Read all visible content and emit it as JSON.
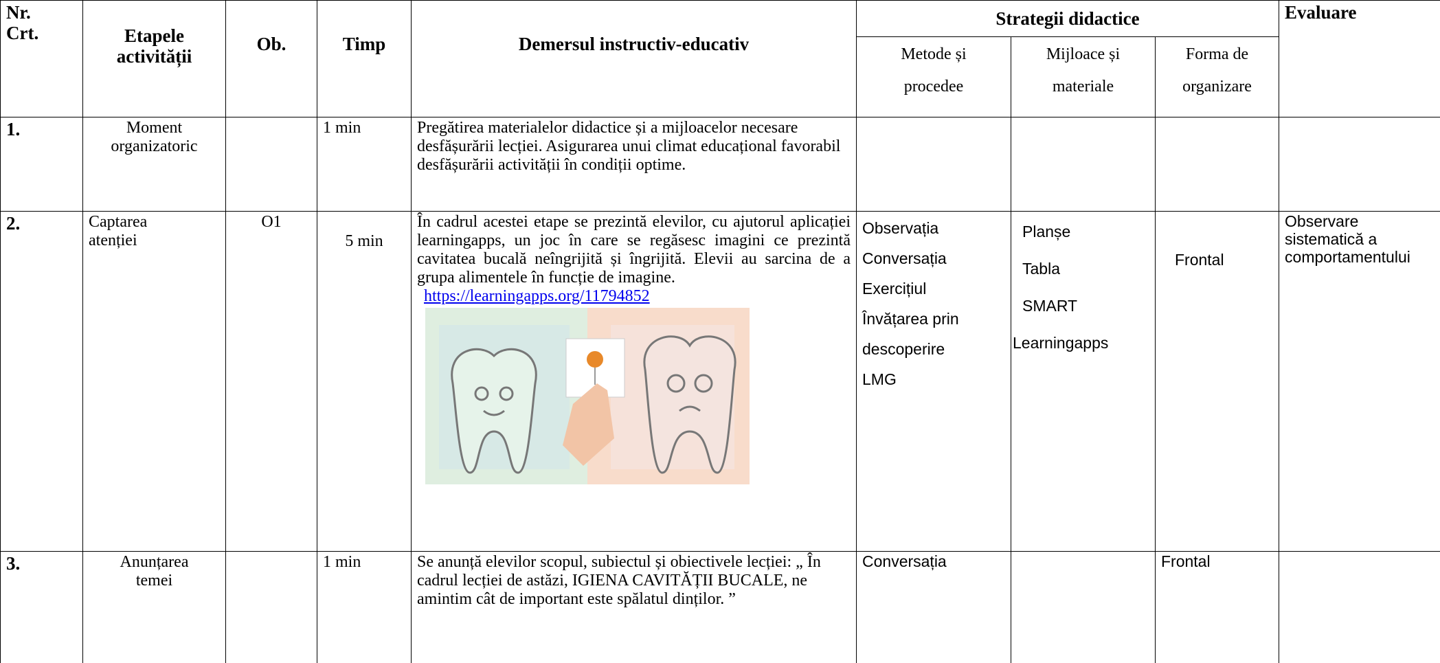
{
  "table": {
    "header": {
      "nr": [
        "Nr.",
        "Crt."
      ],
      "etapele": [
        "Etapele",
        "activității"
      ],
      "ob": "Ob.",
      "timp": "Timp",
      "demersul": "Demersul instructiv-educativ",
      "strategii": "Strategii didactice",
      "evaluare": "Evaluare",
      "metode": [
        "Metode și",
        "procedee"
      ],
      "mijloace": [
        "Mijloace și",
        "materiale"
      ],
      "forma": [
        "Forma de",
        "organizare"
      ]
    },
    "rows": [
      {
        "nr": "1.",
        "etapa": [
          "Moment",
          "organizatoric"
        ],
        "ob": "",
        "timp": "1 min",
        "demers": "Pregătirea materialelor didactice și a mijloacelor necesare desfășurării lecției. Asigurarea unui climat educațional favorabil desfășurării activității în condiții optime."
      },
      {
        "nr": "2.",
        "etapa": [
          "Captarea",
          "atenției"
        ],
        "ob": "O1",
        "timp": "5 min",
        "demers": "În cadrul acestei etape se prezintă elevilor, cu ajutorul aplicației learningapps, un joc în care se regăsesc imagini ce prezintă cavitatea bucală neîngrijită și îngrijită. Elevii au sarcina de a grupa alimentele în funcție de imagine.",
        "link": "https://learningapps.org/11794852",
        "metode": [
          "Observația",
          "Conversația",
          "Exercițiul",
          "Învățarea prin",
          "descoperire",
          "LMG"
        ],
        "mijloace": [
          "Planșe",
          "Tabla",
          "SMART",
          "Learningapps"
        ],
        "forma": "Frontal",
        "evaluare": [
          "Observare",
          "sistematică a",
          "comportamentului"
        ]
      },
      {
        "nr": "3.",
        "etapa": [
          "Anunțarea",
          "temei"
        ],
        "timp": "1 min",
        "demers": "Se anunță elevilor scopul, subiectul și obiectivele lecției: „ În cadrul lecției de astăzi,  IGIENA CAVITĂȚII BUCALE, ne amintim cât de important este spălatul dinților. ”",
        "metode": "Conversația",
        "forma": "Frontal"
      }
    ]
  }
}
